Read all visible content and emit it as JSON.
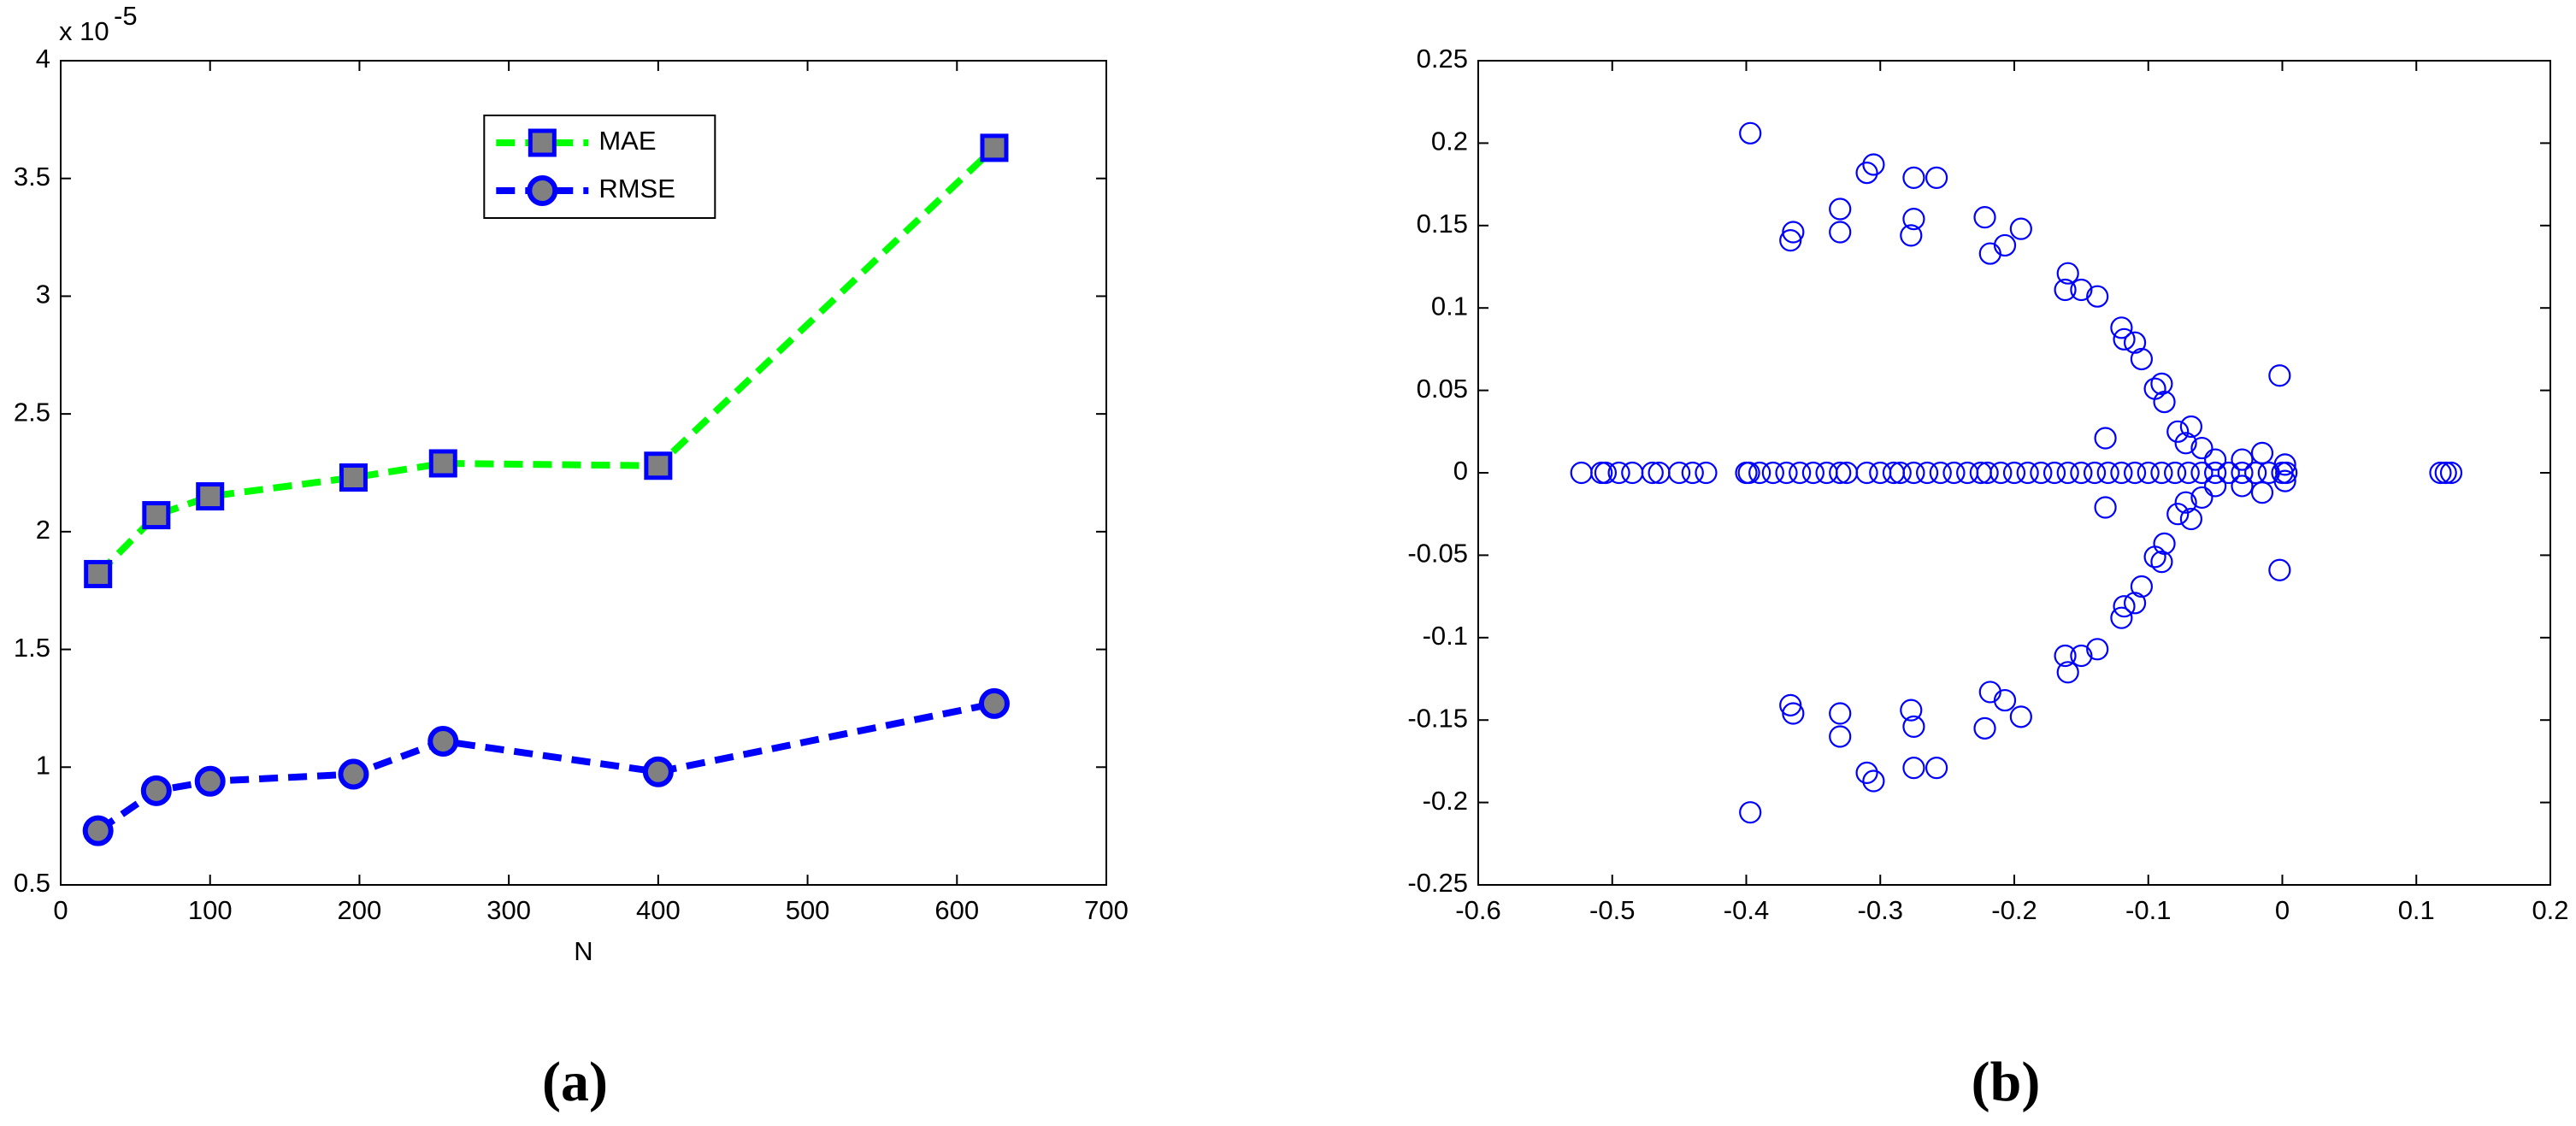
{
  "chart_data": [
    {
      "type": "line",
      "caption": "(a)",
      "xlabel": "N",
      "y_multiplier": "x 10",
      "y_multiplier_exponent": "-5",
      "x": [
        25,
        64,
        100,
        196,
        256,
        400,
        625
      ],
      "series": [
        {
          "name": "MAE",
          "color": "#00ff00",
          "marker": "square",
          "marker_edge": "#0000ff",
          "marker_fill": "#808080",
          "values": [
            1.82,
            2.07,
            2.15,
            2.23,
            2.29,
            2.28,
            3.63
          ]
        },
        {
          "name": "RMSE",
          "color": "#0000ff",
          "marker": "circle",
          "marker_edge": "#0000ff",
          "marker_fill": "#808080",
          "values": [
            0.73,
            0.9,
            0.94,
            0.97,
            1.11,
            0.98,
            1.27
          ]
        }
      ],
      "xlim": [
        0,
        700
      ],
      "xticks": [
        0,
        100,
        200,
        300,
        400,
        500,
        600,
        700
      ],
      "ylim": [
        0.5,
        4
      ],
      "yticks": [
        0.5,
        1,
        1.5,
        2,
        2.5,
        3,
        3.5,
        4
      ],
      "grid": false,
      "legend_loc": "upper center"
    },
    {
      "type": "scatter",
      "caption": "(b)",
      "color": "#0000ff",
      "x": [
        -0.523,
        -0.508,
        -0.505,
        -0.495,
        -0.485,
        -0.47,
        -0.465,
        -0.45,
        -0.44,
        -0.43,
        -0.4,
        -0.398,
        -0.39,
        -0.38,
        -0.37,
        -0.36,
        -0.35,
        -0.34,
        -0.33,
        -0.325,
        -0.31,
        -0.3,
        -0.29,
        -0.285,
        -0.275,
        -0.265,
        -0.255,
        -0.245,
        -0.235,
        -0.225,
        -0.22,
        -0.21,
        -0.2,
        -0.19,
        -0.18,
        -0.17,
        -0.16,
        -0.15,
        -0.14,
        -0.13,
        -0.12,
        -0.11,
        -0.1,
        -0.09,
        -0.08,
        -0.07,
        -0.06,
        -0.05,
        -0.04,
        -0.03,
        -0.02,
        -0.01,
        0,
        0.003,
        0.118,
        0.122,
        0.126,
        -0.397,
        -0.365,
        -0.367,
        -0.33,
        -0.33,
        -0.31,
        -0.305,
        -0.275,
        -0.275,
        -0.277,
        -0.258,
        -0.222,
        -0.218,
        -0.207,
        -0.195,
        -0.16,
        -0.162,
        -0.15,
        -0.138,
        -0.12,
        -0.118,
        -0.11,
        -0.105,
        -0.095,
        -0.09,
        -0.088,
        -0.132,
        -0.078,
        -0.068,
        -0.072,
        -0.06,
        -0.05,
        -0.03,
        -0.015,
        -0.002,
        0.002,
        -0.397,
        -0.365,
        -0.367,
        -0.33,
        -0.33,
        -0.31,
        -0.305,
        -0.275,
        -0.275,
        -0.277,
        -0.258,
        -0.222,
        -0.218,
        -0.207,
        -0.195,
        -0.16,
        -0.162,
        -0.15,
        -0.138,
        -0.12,
        -0.118,
        -0.11,
        -0.105,
        -0.095,
        -0.09,
        -0.088,
        -0.132,
        -0.078,
        -0.068,
        -0.072,
        -0.06,
        -0.05,
        -0.03,
        -0.015,
        -0.002,
        0.002
      ],
      "y": [
        0,
        0,
        0,
        0,
        0,
        0,
        0,
        0,
        0,
        0,
        0,
        0,
        0,
        0,
        0,
        0,
        0,
        0,
        0,
        0,
        0,
        0,
        0,
        0,
        0,
        0,
        0,
        0,
        0,
        0,
        0,
        0,
        0,
        0,
        0,
        0,
        0,
        0,
        0,
        0,
        0,
        0,
        0,
        0,
        0,
        0,
        0,
        0,
        0,
        0,
        0,
        0,
        0,
        0,
        0,
        0,
        0,
        0.206,
        0.146,
        0.141,
        0.16,
        0.146,
        0.182,
        0.187,
        0.179,
        0.154,
        0.144,
        0.179,
        0.155,
        0.133,
        0.138,
        0.148,
        0.121,
        0.111,
        0.111,
        0.107,
        0.088,
        0.081,
        0.079,
        0.069,
        0.051,
        0.054,
        0.043,
        0.021,
        0.025,
        0.028,
        0.018,
        0.015,
        0.008,
        0.008,
        0.012,
        0.059,
        0.005,
        -0.206,
        -0.146,
        -0.141,
        -0.16,
        -0.146,
        -0.182,
        -0.187,
        -0.179,
        -0.154,
        -0.144,
        -0.179,
        -0.155,
        -0.133,
        -0.138,
        -0.148,
        -0.121,
        -0.111,
        -0.111,
        -0.107,
        -0.088,
        -0.081,
        -0.079,
        -0.069,
        -0.051,
        -0.054,
        -0.043,
        -0.021,
        -0.025,
        -0.028,
        -0.018,
        -0.015,
        -0.008,
        -0.008,
        -0.012,
        -0.059,
        -0.005
      ],
      "xlim": [
        -0.6,
        0.2
      ],
      "xticks": [
        -0.6,
        -0.5,
        -0.4,
        -0.3,
        -0.2,
        -0.1,
        0,
        0.1,
        0.2
      ],
      "ylim": [
        -0.25,
        0.25
      ],
      "yticks": [
        -0.25,
        -0.2,
        -0.15,
        -0.1,
        -0.05,
        0,
        0.05,
        0.1,
        0.15,
        0.2,
        0.25
      ],
      "grid": false
    }
  ]
}
